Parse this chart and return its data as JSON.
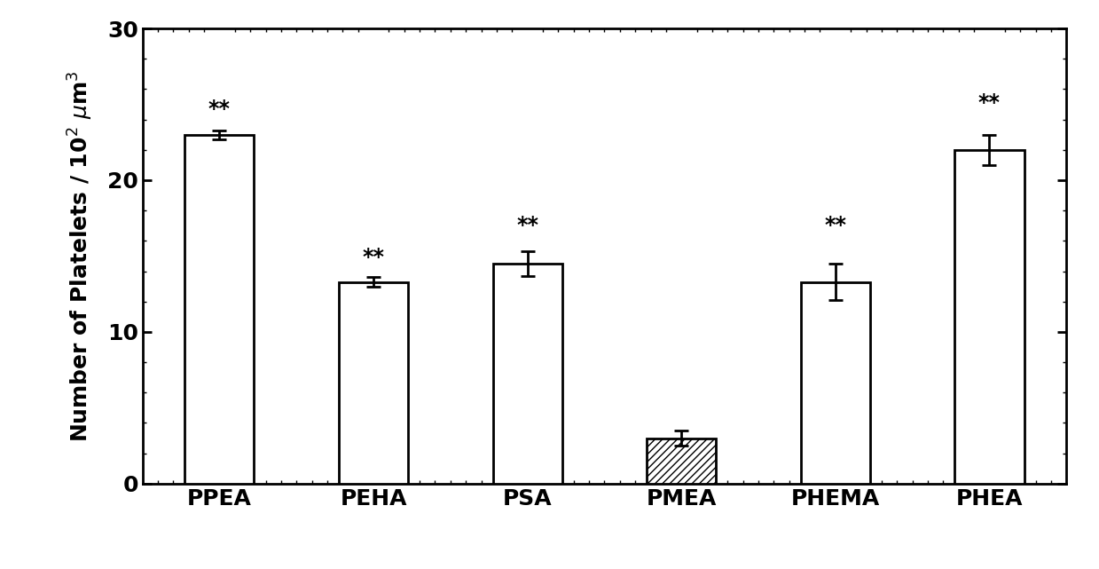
{
  "categories": [
    "PPEA",
    "PEHA",
    "PSA",
    "PMEA",
    "PHEMA",
    "PHEA"
  ],
  "values": [
    23.0,
    13.3,
    14.5,
    3.0,
    13.3,
    22.0
  ],
  "errors": [
    0.3,
    0.3,
    0.8,
    0.5,
    1.2,
    1.0
  ],
  "hatched": [
    false,
    false,
    false,
    true,
    false,
    false
  ],
  "annotations": [
    "**",
    "**",
    "**",
    "",
    "**",
    "**"
  ],
  "annotation_offsets": [
    0.7,
    0.6,
    1.0,
    0,
    1.8,
    1.4
  ],
  "bar_color": "#ffffff",
  "hatch_pattern": "////",
  "edge_color": "#000000",
  "ylabel": "Number of Platelets / 10$^2$ $\\mu$m$^3$",
  "ylim": [
    0,
    30
  ],
  "yticks": [
    0,
    10,
    20,
    30
  ],
  "figsize": [
    12.39,
    6.41
  ],
  "dpi": 100,
  "bar_width": 0.45,
  "label_fontsize": 18,
  "tick_fontsize": 18,
  "annotation_fontsize": 17,
  "background_color": "#ffffff",
  "linewidth": 2.0
}
